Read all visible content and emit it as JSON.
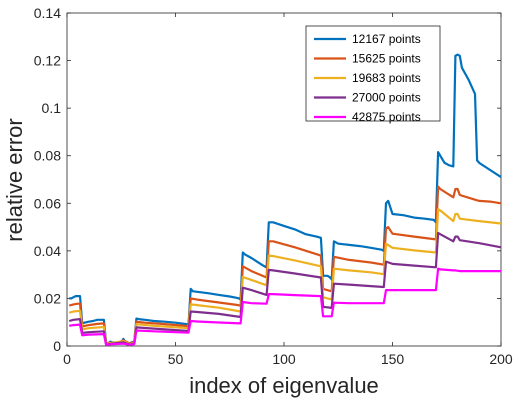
{
  "chart_data": {
    "type": "line",
    "xlabel": "index of eigenvalue",
    "ylabel": "relative error",
    "xlim": [
      0,
      200
    ],
    "ylim": [
      0,
      0.14
    ],
    "xticks": [
      0,
      50,
      100,
      150,
      200
    ],
    "yticks": [
      0,
      0.02,
      0.04,
      0.06,
      0.08,
      0.1,
      0.12,
      0.14
    ],
    "ytick_labels": [
      "0",
      "0.02",
      "0.04",
      "0.06",
      "0.08",
      "0.1",
      "0.12",
      "0.14"
    ],
    "grid": false,
    "legend_position": "top-right",
    "series": [
      {
        "name": "12167 points",
        "color": "#0072BD",
        "points": [
          [
            1,
            0.02
          ],
          [
            2,
            0.02
          ],
          [
            3,
            0.0205
          ],
          [
            4,
            0.021
          ],
          [
            5,
            0.021
          ],
          [
            6,
            0.021
          ],
          [
            7,
            0.0095
          ],
          [
            8,
            0.0098
          ],
          [
            10,
            0.0102
          ],
          [
            12,
            0.0105
          ],
          [
            14,
            0.011
          ],
          [
            16,
            0.011
          ],
          [
            17,
            0.011
          ],
          [
            18,
            0.0012
          ],
          [
            19,
            0.0012
          ],
          [
            20,
            0.0018
          ],
          [
            21,
            0.0015
          ],
          [
            23,
            0.0014
          ],
          [
            25,
            0.0016
          ],
          [
            26,
            0.003
          ],
          [
            27,
            0.0014
          ],
          [
            29,
            0.0012
          ],
          [
            31,
            0.002
          ],
          [
            32,
            0.0115
          ],
          [
            34,
            0.0112
          ],
          [
            36,
            0.011
          ],
          [
            40,
            0.0105
          ],
          [
            45,
            0.0102
          ],
          [
            50,
            0.0098
          ],
          [
            55,
            0.0092
          ],
          [
            56,
            0.009
          ],
          [
            57,
            0.024
          ],
          [
            58,
            0.023
          ],
          [
            60,
            0.0228
          ],
          [
            65,
            0.0222
          ],
          [
            70,
            0.0215
          ],
          [
            75,
            0.0208
          ],
          [
            79,
            0.0201
          ],
          [
            80,
            0.0196
          ],
          [
            81,
            0.0393
          ],
          [
            82,
            0.0385
          ],
          [
            85,
            0.037
          ],
          [
            90,
            0.034
          ],
          [
            92,
            0.033
          ],
          [
            93,
            0.052
          ],
          [
            95,
            0.052
          ],
          [
            100,
            0.0505
          ],
          [
            105,
            0.049
          ],
          [
            110,
            0.047
          ],
          [
            115,
            0.046
          ],
          [
            117,
            0.0455
          ],
          [
            118,
            0.0295
          ],
          [
            120,
            0.0295
          ],
          [
            121,
            0.029
          ],
          [
            122,
            0.028
          ],
          [
            123,
            0.044
          ],
          [
            125,
            0.043
          ],
          [
            130,
            0.0425
          ],
          [
            135,
            0.042
          ],
          [
            140,
            0.0413
          ],
          [
            145,
            0.0405
          ],
          [
            146,
            0.04
          ],
          [
            147,
            0.06
          ],
          [
            148,
            0.061
          ],
          [
            150,
            0.0555
          ],
          [
            155,
            0.055
          ],
          [
            160,
            0.054
          ],
          [
            165,
            0.0535
          ],
          [
            169,
            0.053
          ],
          [
            170,
            0.052
          ],
          [
            171,
            0.0815
          ],
          [
            172,
            0.08
          ],
          [
            174,
            0.077
          ],
          [
            176,
            0.076
          ],
          [
            178,
            0.0755
          ],
          [
            179,
            0.122
          ],
          [
            180,
            0.1225
          ],
          [
            181,
            0.122
          ],
          [
            182,
            0.117
          ],
          [
            185,
            0.112
          ],
          [
            187,
            0.108
          ],
          [
            188,
            0.106
          ],
          [
            189,
            0.078
          ],
          [
            190,
            0.077
          ],
          [
            195,
            0.074
          ],
          [
            200,
            0.071
          ]
        ]
      },
      {
        "name": "15625 points",
        "color": "#D95319",
        "points": [
          [
            1,
            0.017
          ],
          [
            3,
            0.0175
          ],
          [
            5,
            0.0178
          ],
          [
            6,
            0.0178
          ],
          [
            7,
            0.0082
          ],
          [
            10,
            0.0088
          ],
          [
            14,
            0.0093
          ],
          [
            17,
            0.0095
          ],
          [
            18,
            0.001
          ],
          [
            20,
            0.0014
          ],
          [
            23,
            0.0012
          ],
          [
            26,
            0.0024
          ],
          [
            29,
            0.001
          ],
          [
            31,
            0.0016
          ],
          [
            32,
            0.0102
          ],
          [
            36,
            0.0098
          ],
          [
            45,
            0.0092
          ],
          [
            55,
            0.0084
          ],
          [
            56,
            0.0082
          ],
          [
            57,
            0.02
          ],
          [
            60,
            0.0195
          ],
          [
            70,
            0.0183
          ],
          [
            79,
            0.0172
          ],
          [
            80,
            0.0168
          ],
          [
            81,
            0.0335
          ],
          [
            85,
            0.0315
          ],
          [
            92,
            0.0288
          ],
          [
            93,
            0.044
          ],
          [
            95,
            0.044
          ],
          [
            105,
            0.0415
          ],
          [
            117,
            0.038
          ],
          [
            118,
            0.024
          ],
          [
            122,
            0.023
          ],
          [
            123,
            0.0375
          ],
          [
            130,
            0.0362
          ],
          [
            140,
            0.0351
          ],
          [
            146,
            0.0342
          ],
          [
            147,
            0.0495
          ],
          [
            148,
            0.05
          ],
          [
            150,
            0.0472
          ],
          [
            160,
            0.046
          ],
          [
            170,
            0.0448
          ],
          [
            171,
            0.067
          ],
          [
            172,
            0.066
          ],
          [
            178,
            0.0625
          ],
          [
            179,
            0.066
          ],
          [
            180,
            0.066
          ],
          [
            181,
            0.0635
          ],
          [
            188,
            0.0615
          ],
          [
            190,
            0.061
          ],
          [
            195,
            0.0607
          ],
          [
            200,
            0.06
          ]
        ]
      },
      {
        "name": "19683 points",
        "color": "#EDB120",
        "points": [
          [
            1,
            0.014
          ],
          [
            3,
            0.0145
          ],
          [
            6,
            0.0148
          ],
          [
            7,
            0.007
          ],
          [
            10,
            0.0075
          ],
          [
            17,
            0.008
          ],
          [
            18,
            0.0008
          ],
          [
            20,
            0.0012
          ],
          [
            26,
            0.002
          ],
          [
            29,
            0.0008
          ],
          [
            31,
            0.0013
          ],
          [
            32,
            0.0092
          ],
          [
            40,
            0.0085
          ],
          [
            56,
            0.0075
          ],
          [
            57,
            0.0175
          ],
          [
            60,
            0.0172
          ],
          [
            70,
            0.0161
          ],
          [
            80,
            0.0145
          ],
          [
            81,
            0.029
          ],
          [
            85,
            0.0278
          ],
          [
            92,
            0.0255
          ],
          [
            93,
            0.038
          ],
          [
            95,
            0.0378
          ],
          [
            105,
            0.036
          ],
          [
            117,
            0.0335
          ],
          [
            118,
            0.0205
          ],
          [
            122,
            0.0195
          ],
          [
            123,
            0.0325
          ],
          [
            130,
            0.0318
          ],
          [
            140,
            0.031
          ],
          [
            146,
            0.0302
          ],
          [
            147,
            0.043
          ],
          [
            150,
            0.0413
          ],
          [
            160,
            0.0402
          ],
          [
            170,
            0.0393
          ],
          [
            171,
            0.0575
          ],
          [
            172,
            0.057
          ],
          [
            178,
            0.0525
          ],
          [
            179,
            0.0555
          ],
          [
            180,
            0.0555
          ],
          [
            181,
            0.0535
          ],
          [
            190,
            0.0525
          ],
          [
            200,
            0.0515
          ]
        ]
      },
      {
        "name": "27000 points",
        "color": "#7E2F8E",
        "points": [
          [
            1,
            0.0105
          ],
          [
            3,
            0.011
          ],
          [
            6,
            0.0113
          ],
          [
            7,
            0.0055
          ],
          [
            10,
            0.0058
          ],
          [
            17,
            0.0062
          ],
          [
            18,
            0.0006
          ],
          [
            20,
            0.0009
          ],
          [
            26,
            0.0015
          ],
          [
            29,
            0.0006
          ],
          [
            31,
            0.001
          ],
          [
            32,
            0.0078
          ],
          [
            40,
            0.0073
          ],
          [
            56,
            0.0063
          ],
          [
            57,
            0.0145
          ],
          [
            60,
            0.0143
          ],
          [
            70,
            0.0135
          ],
          [
            80,
            0.0122
          ],
          [
            81,
            0.0245
          ],
          [
            85,
            0.0235
          ],
          [
            92,
            0.0215
          ],
          [
            93,
            0.032
          ],
          [
            95,
            0.0318
          ],
          [
            105,
            0.0305
          ],
          [
            117,
            0.0288
          ],
          [
            118,
            0.0165
          ],
          [
            122,
            0.016
          ],
          [
            123,
            0.0262
          ],
          [
            130,
            0.0258
          ],
          [
            140,
            0.0252
          ],
          [
            146,
            0.0248
          ],
          [
            147,
            0.0355
          ],
          [
            150,
            0.0345
          ],
          [
            160,
            0.0338
          ],
          [
            170,
            0.0331
          ],
          [
            171,
            0.0475
          ],
          [
            172,
            0.047
          ],
          [
            178,
            0.044
          ],
          [
            179,
            0.046
          ],
          [
            180,
            0.046
          ],
          [
            181,
            0.0445
          ],
          [
            190,
            0.0432
          ],
          [
            200,
            0.0415
          ]
        ]
      },
      {
        "name": "42875 points",
        "color": "#FF00FF",
        "points": [
          [
            1,
            0.0085
          ],
          [
            3,
            0.0088
          ],
          [
            6,
            0.009
          ],
          [
            7,
            0.0045
          ],
          [
            10,
            0.0048
          ],
          [
            17,
            0.005
          ],
          [
            18,
            0.0005
          ],
          [
            20,
            0.0007
          ],
          [
            26,
            0.001
          ],
          [
            29,
            0.0005
          ],
          [
            31,
            0.0008
          ],
          [
            32,
            0.0065
          ],
          [
            40,
            0.0062
          ],
          [
            56,
            0.0056
          ],
          [
            57,
            0.0105
          ],
          [
            60,
            0.0103
          ],
          [
            70,
            0.0099
          ],
          [
            80,
            0.0095
          ],
          [
            81,
            0.0185
          ],
          [
            85,
            0.018
          ],
          [
            92,
            0.0178
          ],
          [
            93,
            0.0218
          ],
          [
            95,
            0.0218
          ],
          [
            105,
            0.0214
          ],
          [
            117,
            0.021
          ],
          [
            118,
            0.0125
          ],
          [
            122,
            0.0125
          ],
          [
            123,
            0.0182
          ],
          [
            130,
            0.018
          ],
          [
            140,
            0.018
          ],
          [
            146,
            0.018
          ],
          [
            147,
            0.0235
          ],
          [
            150,
            0.0235
          ],
          [
            160,
            0.0235
          ],
          [
            170,
            0.0235
          ],
          [
            171,
            0.0325
          ],
          [
            172,
            0.0322
          ],
          [
            178,
            0.0318
          ],
          [
            179,
            0.0318
          ],
          [
            181,
            0.0315
          ],
          [
            190,
            0.0315
          ],
          [
            200,
            0.0315
          ]
        ]
      }
    ]
  }
}
